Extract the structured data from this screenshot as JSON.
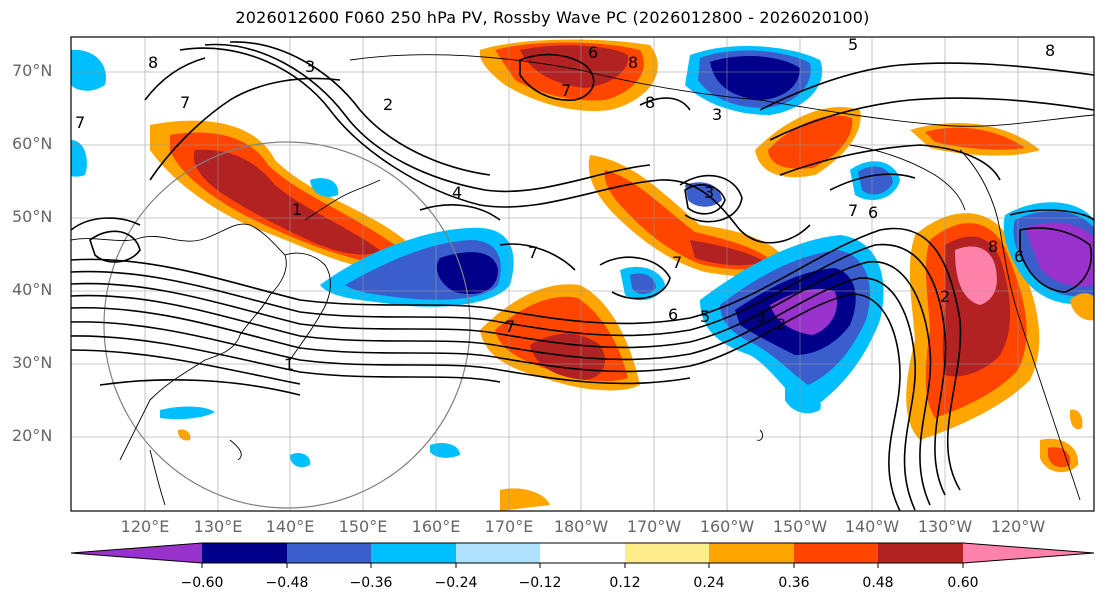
{
  "title": "2026012600 F060 250 hPa PV, Rossby Wave PC (2026012800 - 2026020100)",
  "colors": {
    "neg_060": "#9932cc",
    "neg_048": "#00008b",
    "neg_036": "#3a5fcd",
    "neg_024": "#00bfff",
    "neg_012": "#b0e2ff",
    "zero": "#ffffff",
    "pos_012": "#ffec8b",
    "pos_024": "#ffa500",
    "pos_036": "#ff4500",
    "pos_048": "#b22222",
    "pos_060": "#ff82ab",
    "grid": "#999999",
    "axis_text": "#666666"
  },
  "lat_labels": [
    "70°N",
    "60°N",
    "50°N",
    "40°N",
    "30°N",
    "20°N"
  ],
  "lon_labels": [
    "120°E",
    "130°E",
    "140°E",
    "150°E",
    "160°E",
    "170°E",
    "180°W",
    "170°W",
    "160°W",
    "150°W",
    "140°W",
    "130°W",
    "120°W"
  ],
  "colorbar": {
    "ticks": [
      "−0.60",
      "−0.48",
      "−0.36",
      "−0.24",
      "−0.12",
      "0.12",
      "0.24",
      "0.36",
      "0.48",
      "0.60"
    ]
  },
  "contour_labels": [
    "8",
    "3",
    "2",
    "7",
    "6",
    "4",
    "5",
    "1"
  ]
}
